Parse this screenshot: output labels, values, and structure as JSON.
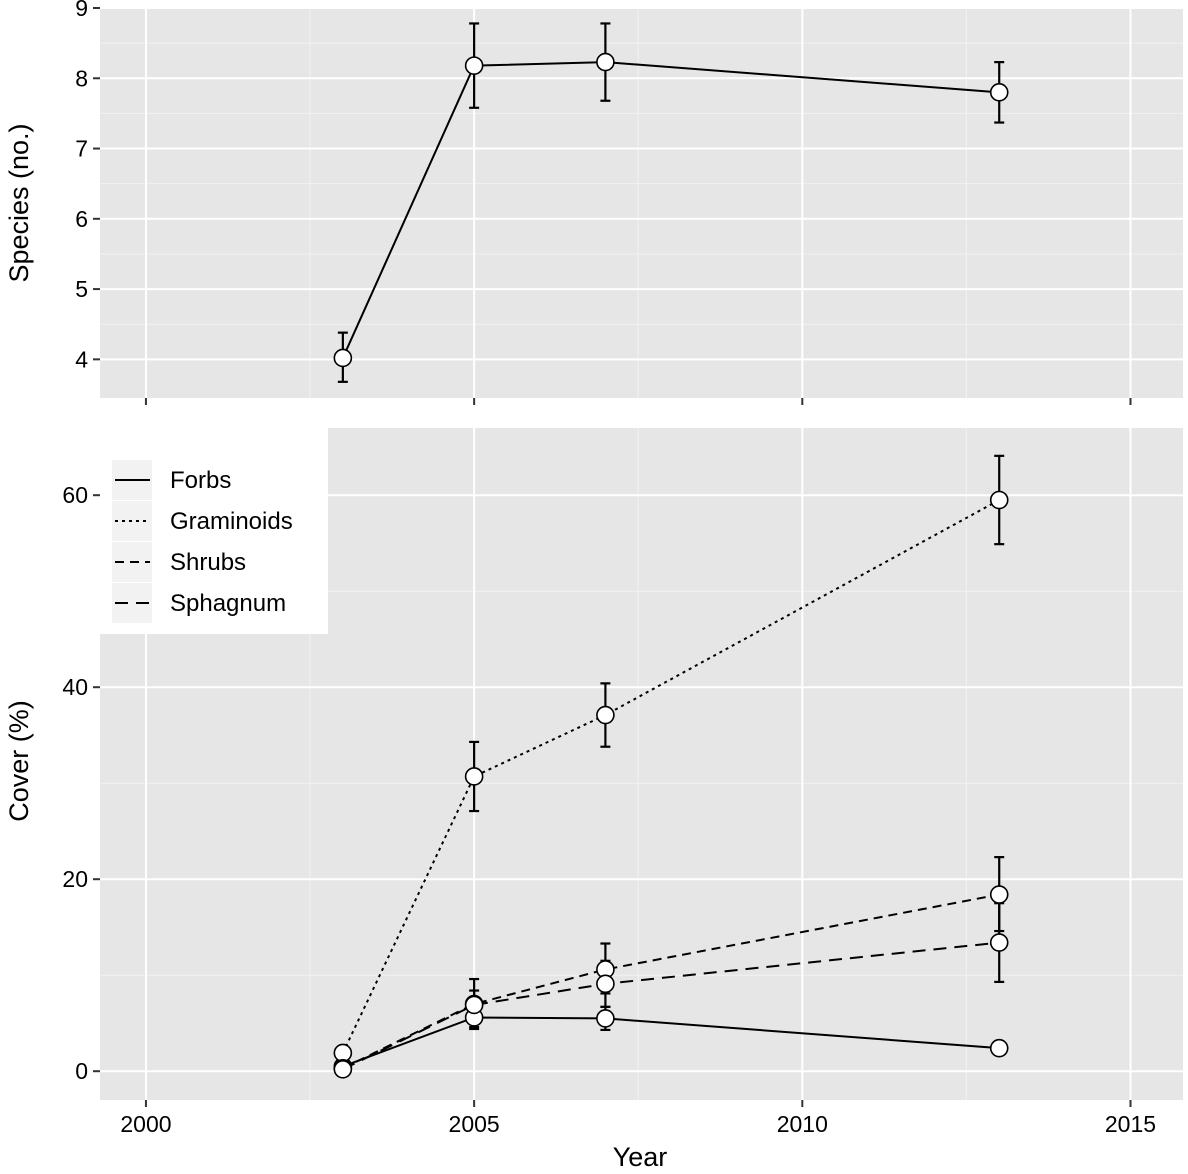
{
  "chart_data": [
    {
      "type": "line",
      "panel": "top",
      "xlabel": "",
      "ylabel": "Species (no.)",
      "xlim": [
        1999.3,
        2015.8
      ],
      "ylim": [
        3.45,
        9.0
      ],
      "x_ticks": [
        2000,
        2005,
        2010,
        2015
      ],
      "y_ticks": [
        4,
        5,
        6,
        7,
        8,
        9
      ],
      "grid": true,
      "series": [
        {
          "linestyle": "solid",
          "points": [
            {
              "x": 2003,
              "y": 4.02,
              "lo": 3.68,
              "hi": 4.38
            },
            {
              "x": 2005,
              "y": 8.18,
              "lo": 7.58,
              "hi": 8.78
            },
            {
              "x": 2007,
              "y": 8.23,
              "lo": 7.68,
              "hi": 8.78
            },
            {
              "x": 2013,
              "y": 7.8,
              "lo": 7.37,
              "hi": 8.23
            }
          ]
        }
      ]
    },
    {
      "type": "line",
      "panel": "bottom",
      "xlabel": "Year",
      "ylabel": "Cover (%)",
      "xlim": [
        1999.3,
        2015.8
      ],
      "ylim": [
        -3,
        67
      ],
      "x_ticks": [
        2000,
        2005,
        2010,
        2015
      ],
      "y_ticks": [
        0,
        20,
        40,
        60
      ],
      "grid": true,
      "legend": {
        "position": "top-left"
      },
      "series": [
        {
          "name": "Forbs",
          "linestyle": "solid",
          "points": [
            {
              "x": 2003,
              "y": 0.5
            },
            {
              "x": 2005,
              "y": 5.6,
              "lo": 4.4,
              "hi": 6.8
            },
            {
              "x": 2007,
              "y": 5.5,
              "lo": 4.3,
              "hi": 6.7
            },
            {
              "x": 2013,
              "y": 2.4
            }
          ]
        },
        {
          "name": "Graminoids",
          "linestyle": "dotted",
          "points": [
            {
              "x": 2003,
              "y": 1.9
            },
            {
              "x": 2005,
              "y": 30.7,
              "lo": 27.1,
              "hi": 34.3
            },
            {
              "x": 2007,
              "y": 37.1,
              "lo": 33.8,
              "hi": 40.4
            },
            {
              "x": 2013,
              "y": 59.5,
              "lo": 54.9,
              "hi": 64.1
            }
          ]
        },
        {
          "name": "Shrubs",
          "linestyle": "dashed-short",
          "points": [
            {
              "x": 2003,
              "y": 0.3
            },
            {
              "x": 2005,
              "y": 7.0,
              "lo": 4.6,
              "hi": 9.6
            },
            {
              "x": 2007,
              "y": 10.6,
              "lo": 8.1,
              "hi": 13.3
            },
            {
              "x": 2013,
              "y": 18.4,
              "lo": 14.6,
              "hi": 22.3
            }
          ]
        },
        {
          "name": "Sphagnum",
          "linestyle": "dashed-long",
          "points": [
            {
              "x": 2003,
              "y": 0.2
            },
            {
              "x": 2005,
              "y": 6.9,
              "lo": 5.4,
              "hi": 8.4
            },
            {
              "x": 2007,
              "y": 9.1,
              "lo": 6.7,
              "hi": 11.5
            },
            {
              "x": 2013,
              "y": 13.4,
              "lo": 9.3,
              "hi": 17.5
            }
          ]
        }
      ]
    }
  ]
}
